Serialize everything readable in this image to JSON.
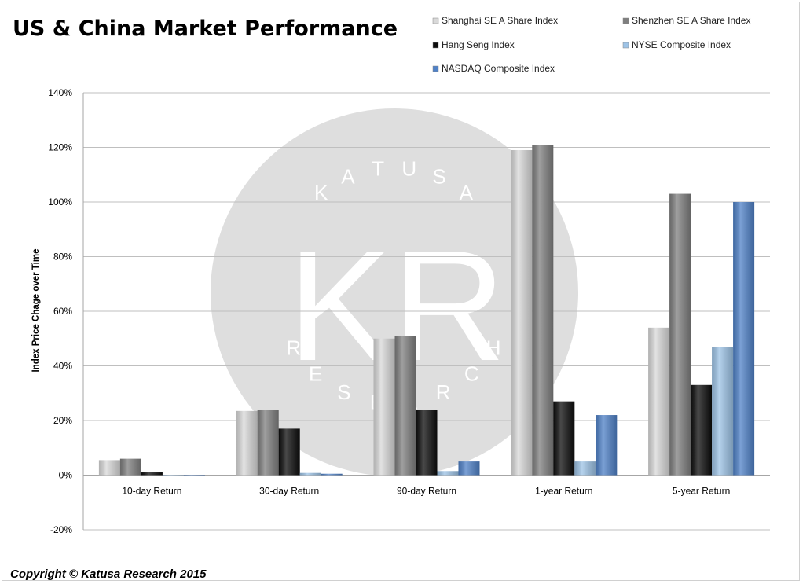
{
  "chart_data": {
    "type": "bar",
    "title": "US & China Market Performance",
    "ylabel": "Index Price Chage over Time",
    "xlabel": "",
    "ylim": [
      -20,
      140
    ],
    "yticks": [
      -20,
      0,
      20,
      40,
      60,
      80,
      100,
      120,
      140
    ],
    "ytick_labels": [
      "-20%",
      "0%",
      "20%",
      "40%",
      "60%",
      "80%",
      "100%",
      "120%",
      "140%"
    ],
    "grid": true,
    "legend_position": "top-right",
    "categories": [
      "10-day Return",
      "30-day Return",
      "90-day Return",
      "1-year Return",
      "5-year Return"
    ],
    "series": [
      {
        "name": "Shanghai SE A Share Index",
        "color": "#d9d9d9",
        "values": [
          5.5,
          23.5,
          50,
          119,
          54
        ]
      },
      {
        "name": "Shenzhen SE A Share Index",
        "color": "#7f7f7f",
        "values": [
          6,
          24,
          51,
          121,
          103
        ]
      },
      {
        "name": "Hang Seng Index",
        "color": "#0d0d0d",
        "values": [
          1,
          17,
          24,
          27,
          33
        ]
      },
      {
        "name": "NYSE Composite Index",
        "color": "#9dc3e6",
        "values": [
          -0.3,
          0.8,
          1.5,
          5,
          47
        ]
      },
      {
        "name": "NASDAQ Composite Index",
        "color": "#4f81c7",
        "values": [
          -0.3,
          0.5,
          5,
          22,
          100
        ]
      }
    ]
  },
  "watermark": {
    "top_text": "KATUSA",
    "initials": "KR",
    "bottom_text": "RESEARCH"
  },
  "footer": "Copyright © Katusa Research 2015"
}
